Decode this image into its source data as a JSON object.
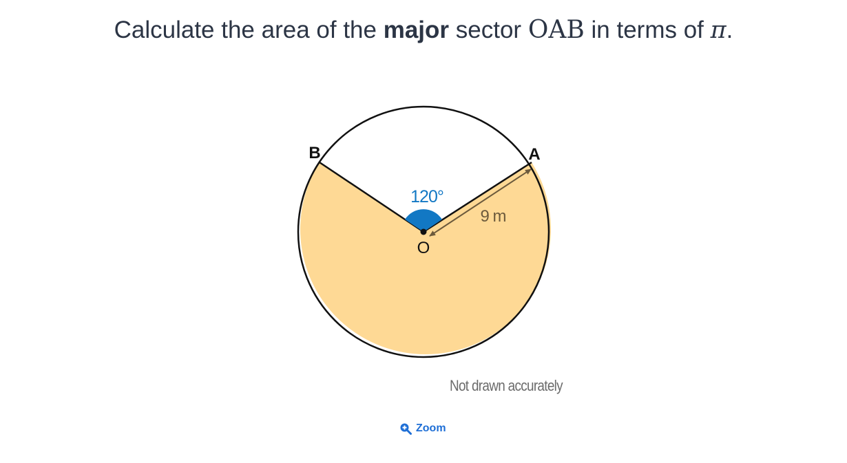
{
  "question": {
    "prefix": "Calculate the area of the",
    "emphasis": "major",
    "middle": "sector",
    "sector_name": "OAB",
    "suffix_before_pi": "in terms of",
    "pi_symbol": "π",
    "end": "."
  },
  "diagram": {
    "labels": {
      "point_a": "A",
      "point_b": "B",
      "centre": "O",
      "angle": "120°",
      "radius": "9 m"
    },
    "angle_degrees": 120,
    "radius_value": 9,
    "colors": {
      "major_sector_fill": "#fed995",
      "angle_marker": "#1278c4",
      "radius_arrow": "#6c5a3c",
      "outline": "#111111"
    }
  },
  "note": "Not drawn accurately",
  "zoom_button": {
    "label": "Zoom",
    "icon": "zoom-in-icon",
    "color": "#1f6fd6"
  }
}
